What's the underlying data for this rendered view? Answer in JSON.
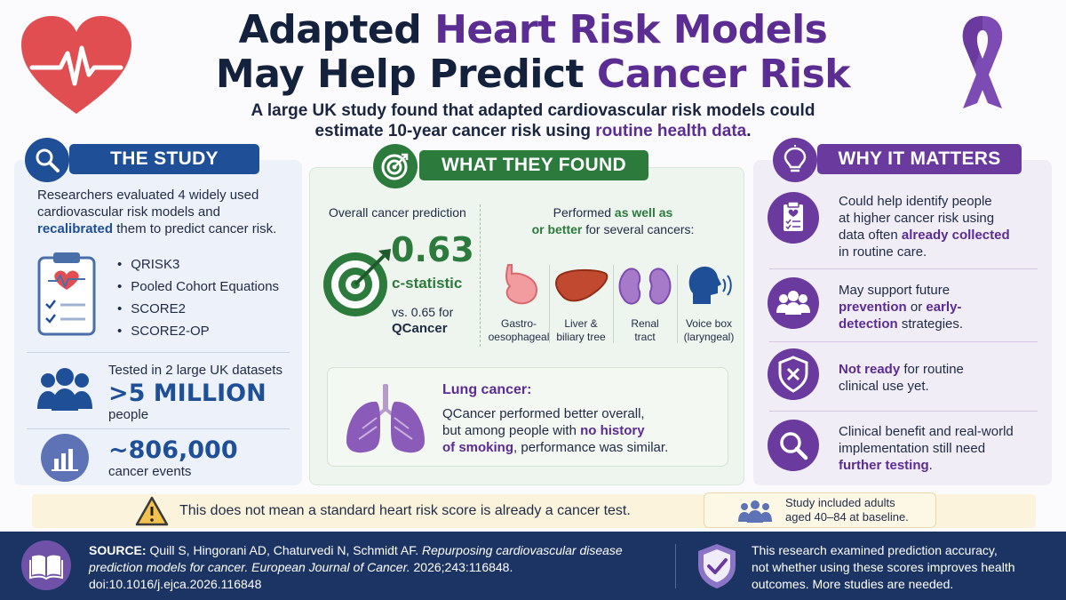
{
  "title": {
    "line1_plain": "Adapted ",
    "line1_highlight": "Heart Risk Models",
    "line2_plain": "May Help Predict ",
    "line2_highlight": "Cancer Risk"
  },
  "subtitle": {
    "line1": "A large UK study found that adapted cardiovascular risk models could",
    "line2_plain": "estimate 10-year cancer risk using ",
    "line2_highlight": "routine health data",
    "line2_end": "."
  },
  "study": {
    "header": "THE STUDY",
    "desc_line1": "Researchers evaluated 4 widely used",
    "desc_line2": "cardiovascular risk models and",
    "desc_highlight": "recalibrated",
    "desc_line3_end": " them to predict cancer risk.",
    "models": [
      "QRISK3",
      "Pooled Cohort Equations",
      "SCORE2",
      "SCORE2-OP"
    ],
    "datasets_label": "Tested in 2 large UK datasets",
    "people_value": ">5 MILLION",
    "people_label": "people",
    "events_value": "~806,000",
    "events_label": "cancer events"
  },
  "found": {
    "header": "WHAT THEY FOUND",
    "overall_label": "Overall cancer prediction",
    "c_value": "0.63",
    "c_label": "c-statistic",
    "vs_text": "vs. 0.65 for",
    "vs_model": "QCancer",
    "performed_plain": "Performed ",
    "performed_highlight1": "as well as",
    "performed_highlight2": "or better",
    "performed_end": " for several cancers:",
    "organs": [
      {
        "line1": "Gastro-",
        "line2": "oesophageal"
      },
      {
        "line1": "Liver &",
        "line2": "biliary tree"
      },
      {
        "line1": "Renal",
        "line2": "tract"
      },
      {
        "line1": "Voice box",
        "line2": "(laryngeal)"
      }
    ],
    "lung_title": "Lung cancer:",
    "lung_line1": "QCancer performed better overall,",
    "lung_line2_plain": "but among people with ",
    "lung_line2_highlight": "no history",
    "lung_line3_highlight": "of smoking",
    "lung_line3_end": ", performance was similar."
  },
  "why": {
    "header": "WHY IT MATTERS",
    "item1_line1": "Could help identify people",
    "item1_line2": "at higher cancer risk using",
    "item1_line3_plain": "data often ",
    "item1_line3_highlight": "already collected",
    "item1_line4": "in routine care.",
    "item2_line1": "May support future",
    "item2_line2_highlight": "prevention",
    "item2_line2_plain": " or ",
    "item2_line2_highlight2": "early-",
    "item2_line3_highlight": "detection",
    "item2_line3_end": " strategies.",
    "item3_line1_highlight": "Not ready",
    "item3_line1_end": " for routine",
    "item3_line2": "clinical use yet.",
    "item4_line1": "Clinical benefit and real-world",
    "item4_line2": "implementation still need",
    "item4_line3_highlight": "further testing",
    "item4_line3_end": "."
  },
  "warning": {
    "text": "This does not mean a standard heart risk score is already a cancer test.",
    "age_line1": "Study included adults",
    "age_line2": "aged 40–84 at baseline."
  },
  "footer": {
    "source_label": "SOURCE:",
    "source_line1_plain": " Quill S, Hingorani AD, Chaturvedi N, Schmidt AF. ",
    "source_line1_italic": "Repurposing cardiovascular disease",
    "source_line2_italic": "prediction models for cancer. European Journal of Cancer.",
    "source_line2_plain": " 2026;243:116848.",
    "doi_label": "doi:",
    "doi_value": "10.1016/j.ejca.2026.116848",
    "note_line1": "This research examined prediction accuracy,",
    "note_line2": "not whether using these scores improves health",
    "note_line3": "outcomes. More studies are needed."
  },
  "colors": {
    "navy": "#14213d",
    "purple": "#5b2c91",
    "blue": "#1f4f96",
    "green": "#2d7a3d",
    "footer": "#1b3464",
    "heart": "#e04e52"
  },
  "icons": [
    "heart-pulse-icon",
    "cancer-ribbon-icon",
    "magnifier-icon",
    "target-icon",
    "lightbulb-icon",
    "clipboard-heart-icon",
    "people-icon",
    "bar-chart-icon",
    "stomach-icon",
    "liver-icon",
    "kidneys-icon",
    "voice-icon",
    "lungs-icon",
    "shield-x-icon",
    "search-icon",
    "warning-icon",
    "book-icon",
    "shield-check-icon"
  ]
}
